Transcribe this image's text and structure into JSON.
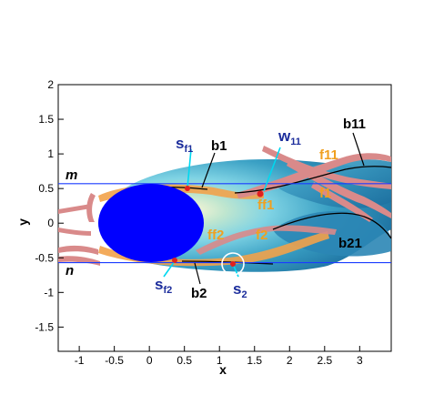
{
  "axes": {
    "xlabel": "x",
    "ylabel": "y",
    "xlim": [
      -1.3,
      3.45
    ],
    "ylim": [
      -1.85,
      2.0
    ],
    "x_ticks": [
      "-1",
      "-0.5",
      "0",
      "0.5",
      "1",
      "1.5",
      "2",
      "2.5",
      "3"
    ],
    "y_ticks": [
      "2",
      "1.5",
      "1",
      "0.5",
      "0",
      "-0.5",
      "-1",
      "-1.5"
    ]
  },
  "lines": {
    "m": {
      "label": "m",
      "y": 0.57
    },
    "n": {
      "label": "n",
      "y": -0.57
    }
  },
  "labels": {
    "sf1": {
      "main": "s",
      "sub": "f1"
    },
    "sf2": {
      "main": "s",
      "sub": "f2"
    },
    "s2": {
      "main": "s",
      "sub": "2"
    },
    "w11": {
      "main": "w",
      "sub": "11"
    },
    "b1": "b1",
    "b2": "b2",
    "b11": "b11",
    "b21": "b21",
    "ff1": "ff1",
    "ff2": "ff2",
    "f1": "f1",
    "f2": "f2",
    "f11": "f11"
  },
  "colors": {
    "body": "#0000ff",
    "reference_line": "#1a3cff",
    "callout_cyan": "#00d8f0",
    "label_navy": "#1c2d9c",
    "label_orange": "#f0a020",
    "label_black": "#000000",
    "wake_light": "#7fd3e4",
    "wake_mid": "#3aa0c4",
    "wake_dark": "#1b6e9e",
    "stream_pink": "#d98a8a",
    "stream_orange": "#f2a24a"
  }
}
